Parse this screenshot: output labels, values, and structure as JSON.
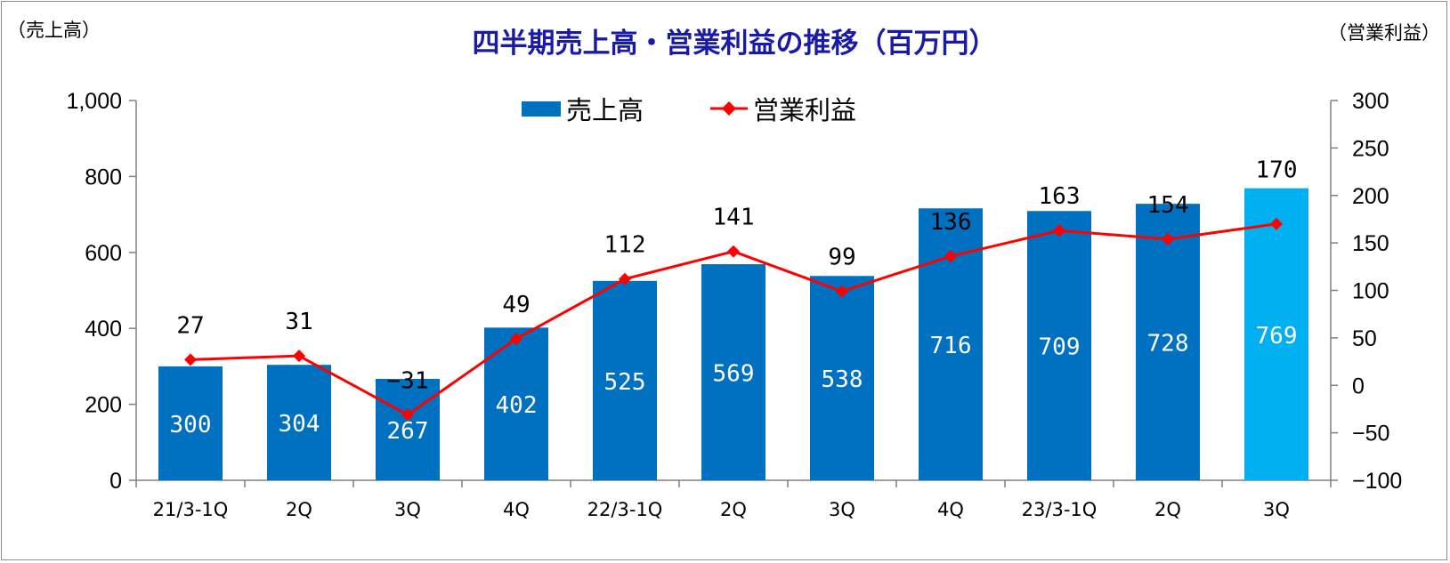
{
  "chart_data": {
    "type": "bar",
    "title": "四半期売上高・営業利益の推移（百万円）",
    "left_axis_unit": "（売上高）",
    "right_axis_unit": "（営業利益）",
    "categories": [
      "21/3-1Q",
      "2Q",
      "3Q",
      "4Q",
      "22/3-1Q",
      "2Q",
      "3Q",
      "4Q",
      "23/3-1Q",
      "2Q",
      "3Q"
    ],
    "series": [
      {
        "name": "売上高",
        "type": "bar",
        "axis": "left",
        "values": [
          300,
          304,
          267,
          402,
          525,
          569,
          538,
          716,
          709,
          728,
          769
        ],
        "labels": [
          "300",
          "304",
          "267",
          "402",
          "525",
          "569",
          "538",
          "716",
          "709",
          "728",
          "769"
        ]
      },
      {
        "name": "営業利益",
        "type": "line",
        "axis": "right",
        "values": [
          27,
          31,
          -31,
          49,
          112,
          141,
          99,
          136,
          163,
          154,
          170
        ],
        "labels": [
          "27",
          "31",
          "−31",
          "49",
          "112",
          "141",
          "99",
          "136",
          "163",
          "154",
          "170"
        ]
      }
    ],
    "left_axis": {
      "min": 0,
      "max": 1000,
      "ticks": [
        0,
        200,
        400,
        600,
        800,
        1000
      ],
      "tick_labels": [
        "0",
        "200",
        "400",
        "600",
        "800",
        "1,000"
      ]
    },
    "right_axis": {
      "min": -100,
      "max": 300,
      "ticks": [
        -100,
        -50,
        0,
        50,
        100,
        150,
        200,
        250,
        300
      ],
      "tick_labels": [
        "−100",
        "−50",
        "0",
        "50",
        "100",
        "150",
        "200",
        "250",
        "300"
      ]
    },
    "legend_position": "top-center",
    "grid": false,
    "colors": {
      "bar": "#0070c0",
      "bar_highlight": "#00b0f0",
      "line": "#ff0000",
      "negative_label": "#ff0000",
      "title": "#1a1aa8",
      "axis": "#808080"
    }
  }
}
